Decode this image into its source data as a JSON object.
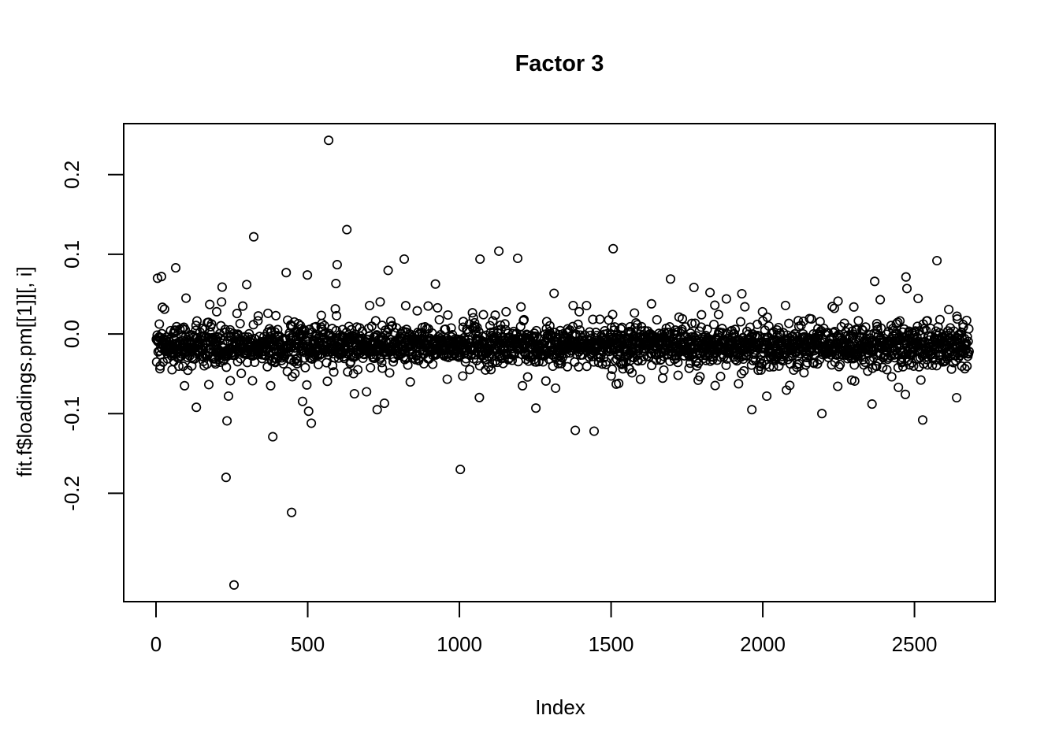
{
  "chart_data": {
    "type": "scatter",
    "title": "Factor 3",
    "xlabel": "Index",
    "ylabel": "fit.f$loadings.pm[[1]][, i]",
    "marker": "open-circle",
    "marker_color": "#000000",
    "background_color": "#ffffff",
    "grid": false,
    "legend": false,
    "n_points": 2680,
    "x_description": "Index 1..2680",
    "xlim": [
      -106.5,
      2766
    ],
    "ylim": [
      -0.336,
      0.264
    ],
    "x_ticks": [
      {
        "value": 0,
        "label": "0"
      },
      {
        "value": 500,
        "label": "500"
      },
      {
        "value": 1000,
        "label": "1000"
      },
      {
        "value": 1500,
        "label": "1500"
      },
      {
        "value": 2000,
        "label": "2000"
      },
      {
        "value": 2500,
        "label": "2500"
      }
    ],
    "y_ticks": [
      {
        "value": -0.2,
        "label": "-0.2"
      },
      {
        "value": -0.1,
        "label": "-0.1"
      },
      {
        "value": 0.0,
        "label": "0.0"
      },
      {
        "value": 0.1,
        "label": "0.1"
      },
      {
        "value": 0.2,
        "label": "0.2"
      }
    ],
    "outliers": [
      [
        5,
        0.07
      ],
      [
        18,
        0.072
      ],
      [
        65,
        0.083
      ],
      [
        94,
        -0.065
      ],
      [
        99,
        0.045
      ],
      [
        133,
        -0.092
      ],
      [
        177,
        0.037
      ],
      [
        231,
        -0.18
      ],
      [
        234,
        -0.109
      ],
      [
        239,
        -0.078
      ],
      [
        257,
        -0.315
      ],
      [
        286,
        0.035
      ],
      [
        299,
        0.062
      ],
      [
        322,
        0.122
      ],
      [
        378,
        -0.065
      ],
      [
        385,
        -0.129
      ],
      [
        429,
        0.077
      ],
      [
        447,
        -0.224
      ],
      [
        499,
        0.074
      ],
      [
        503,
        -0.097
      ],
      [
        512,
        -0.112
      ],
      [
        569,
        0.243
      ],
      [
        597,
        0.087
      ],
      [
        629,
        0.131
      ],
      [
        654,
        -0.075
      ],
      [
        753,
        -0.087
      ],
      [
        818,
        0.094
      ],
      [
        1003,
        -0.17
      ],
      [
        1068,
        0.094
      ],
      [
        1130,
        0.104
      ],
      [
        1192,
        0.095
      ],
      [
        1203,
        0.034
      ],
      [
        1208,
        -0.065
      ],
      [
        1252,
        -0.093
      ],
      [
        1312,
        0.051
      ],
      [
        1317,
        -0.068
      ],
      [
        1382,
        -0.121
      ],
      [
        1444,
        -0.122
      ],
      [
        1507,
        0.107
      ],
      [
        1525,
        -0.062
      ],
      [
        1696,
        0.069
      ],
      [
        1787,
        -0.058
      ],
      [
        1826,
        0.052
      ],
      [
        1880,
        0.044
      ],
      [
        2013,
        -0.078
      ],
      [
        2195,
        -0.1
      ],
      [
        2360,
        -0.088
      ],
      [
        2369,
        0.066
      ],
      [
        2447,
        -0.067
      ],
      [
        2475,
        0.057
      ],
      [
        2527,
        -0.108
      ],
      [
        2574,
        0.092
      ],
      [
        2639,
        -0.08
      ]
    ],
    "band_model": {
      "note": "Approximation of the dense band of ~2680 points hugging zero (solid black band roughly -0.04..+0.015, fringes to about +/-0.09).",
      "seed": 42,
      "clamp": 0.095,
      "components": [
        {
          "weight": 0.78,
          "mean": -0.015,
          "sd": 0.011
        },
        {
          "weight": 0.18,
          "mean": -0.012,
          "sd": 0.022
        },
        {
          "weight": 0.04,
          "mean": -0.006,
          "sd": 0.04
        }
      ]
    }
  }
}
